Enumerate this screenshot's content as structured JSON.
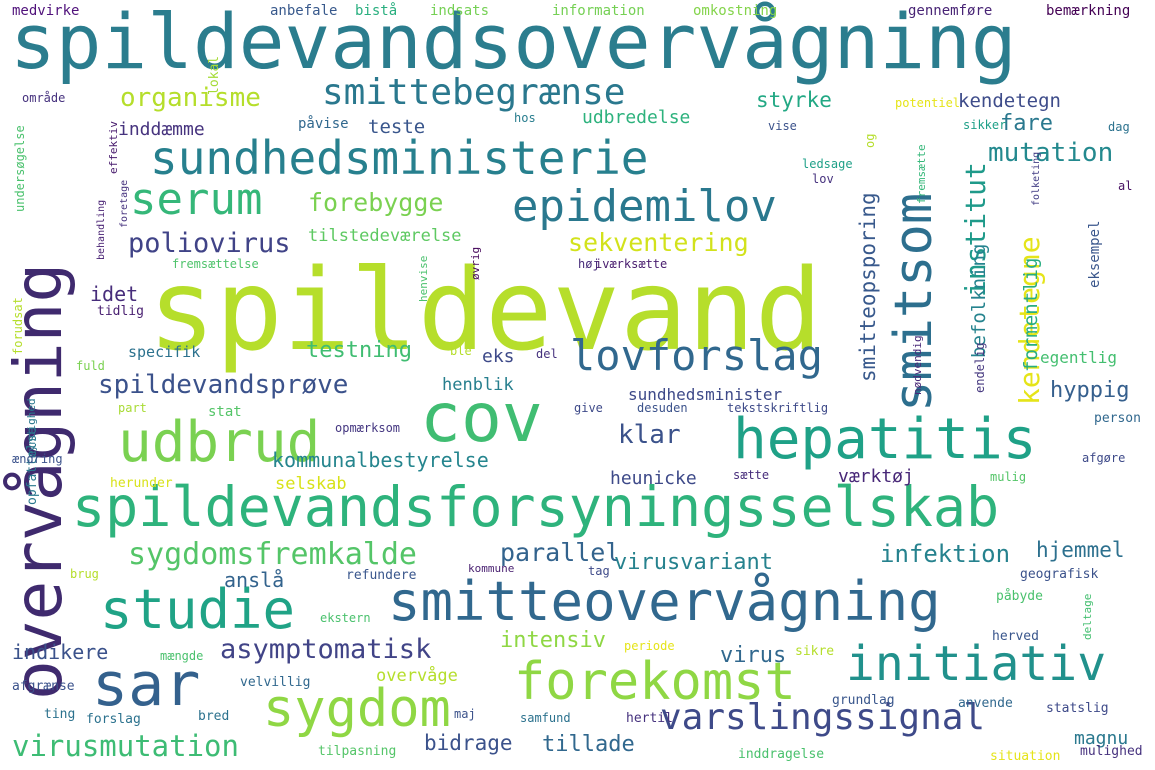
{
  "palette": {
    "background": "#ffffff"
  },
  "words": [
    {
      "text": "spildevandsovervågning",
      "color": "#2b7d8e"
    },
    {
      "text": "spildevand",
      "color": "#b6de2b"
    },
    {
      "text": "overvågning",
      "color": "#3f2a6e"
    },
    {
      "text": "smitsom",
      "color": "#2d6f8e"
    },
    {
      "text": "cov",
      "color": "#40bd72"
    },
    {
      "text": "udbrud",
      "color": "#7ad151"
    },
    {
      "text": "hepatitis",
      "color": "#1fa187"
    },
    {
      "text": "spildevandsforsyningsselskab",
      "color": "#2eb37c"
    },
    {
      "text": "smitteovervågning",
      "color": "#31688e"
    },
    {
      "text": "studie",
      "color": "#20a386"
    },
    {
      "text": "sar",
      "color": "#34618d"
    },
    {
      "text": "sygdom",
      "color": "#8fd744"
    },
    {
      "text": "forekomst",
      "color": "#8fd744"
    },
    {
      "text": "initiativ",
      "color": "#21918c"
    },
    {
      "text": "sundhedsministerie",
      "color": "#27808e"
    },
    {
      "text": "epidemilov",
      "color": "#2a788e"
    },
    {
      "text": "serum",
      "color": "#35b779"
    },
    {
      "text": "lovforslag",
      "color": "#31688e"
    },
    {
      "text": "smittebegrænse",
      "color": "#2a788e"
    },
    {
      "text": "organisme",
      "color": "#b5de2b"
    },
    {
      "text": "varslingssignal",
      "color": "#3e4a89"
    },
    {
      "text": "virusmutation",
      "color": "#3dbc74"
    },
    {
      "text": "sygdomsfremkalde",
      "color": "#54c568"
    },
    {
      "text": "spildevandsprøve",
      "color": "#3b528b"
    },
    {
      "text": "poliovirus",
      "color": "#404387"
    },
    {
      "text": "forebygge",
      "color": "#7ad151"
    },
    {
      "text": "sekventering",
      "color": "#d2e21b"
    },
    {
      "text": "asymptomatisk",
      "color": "#414487"
    },
    {
      "text": "kendetegne",
      "color": "#e5e419"
    },
    {
      "text": "institut",
      "color": "#1f9a8a"
    },
    {
      "text": "smitteopsporing",
      "color": "#38598c"
    },
    {
      "text": "mutation",
      "color": "#23898e"
    },
    {
      "text": "kommunalbestyrelse",
      "color": "#25858e"
    },
    {
      "text": "testning",
      "color": "#40bd72"
    },
    {
      "text": "klar",
      "color": "#3b528b"
    },
    {
      "text": "parallel",
      "color": "#33638d"
    },
    {
      "text": "infektion",
      "color": "#26828e"
    },
    {
      "text": "virusvariant",
      "color": "#26828e"
    },
    {
      "text": "fare",
      "color": "#2a788e"
    },
    {
      "text": "styrke",
      "color": "#22a884"
    },
    {
      "text": "hjemmel",
      "color": "#2d708e"
    },
    {
      "text": "intensiv",
      "color": "#8fd744"
    },
    {
      "text": "indikere",
      "color": "#3b528b"
    },
    {
      "text": "anslå",
      "color": "#33638d"
    },
    {
      "text": "virus",
      "color": "#31688e"
    },
    {
      "text": "bidrage",
      "color": "#3b528b"
    },
    {
      "text": "tillade",
      "color": "#31688e"
    },
    {
      "text": "magnu",
      "color": "#2a788e"
    },
    {
      "text": "befolkning",
      "color": "#25838e"
    },
    {
      "text": "formentlig",
      "color": "#27ad81"
    },
    {
      "text": "hyppig",
      "color": "#355f8d"
    },
    {
      "text": "kendetegn",
      "color": "#3e4c8a"
    },
    {
      "text": "teste",
      "color": "#39568c"
    },
    {
      "text": "inddæmme",
      "color": "#46337e"
    },
    {
      "text": "påvise",
      "color": "#31688e"
    },
    {
      "text": "udbredelse",
      "color": "#2db27d"
    },
    {
      "text": "idet",
      "color": "#472d7b"
    },
    {
      "text": "eks",
      "color": "#3e4a89"
    },
    {
      "text": "henblik",
      "color": "#277f8e"
    },
    {
      "text": "sundhedsminister",
      "color": "#3e4a89"
    },
    {
      "text": "heunicke",
      "color": "#3e4a89"
    },
    {
      "text": "værktøj",
      "color": "#482878"
    },
    {
      "text": "selskab",
      "color": "#d8e219"
    },
    {
      "text": "overvåge",
      "color": "#b5de2b"
    },
    {
      "text": "egentlig",
      "color": "#44bf70"
    },
    {
      "text": "eksempel",
      "color": "#39568c"
    },
    {
      "text": "tilstedeværelse",
      "color": "#5ec962"
    },
    {
      "text": "specifik",
      "color": "#2c728e"
    },
    {
      "text": "stat",
      "color": "#54c568"
    },
    {
      "text": "tidlig",
      "color": "#481f70"
    },
    {
      "text": "geografisk",
      "color": "#3b528b"
    },
    {
      "text": "refundere",
      "color": "#39568c"
    },
    {
      "text": "medvirke",
      "color": "#50127b"
    },
    {
      "text": "anbefale",
      "color": "#38598c"
    },
    {
      "text": "bistå",
      "color": "#29af7f"
    },
    {
      "text": "indsats",
      "color": "#75d054"
    },
    {
      "text": "information",
      "color": "#75d054"
    },
    {
      "text": "omkostning",
      "color": "#84d44b"
    },
    {
      "text": "gennemføre",
      "color": "#482475"
    },
    {
      "text": "bemærkning",
      "color": "#440154"
    },
    {
      "text": "lokal",
      "color": "#a5db36"
    },
    {
      "text": "område",
      "color": "#46327e"
    },
    {
      "text": "undersøgelse",
      "color": "#4ac16d"
    },
    {
      "text": "effektiv",
      "color": "#481b6d"
    },
    {
      "text": "foretage",
      "color": "#46327e"
    },
    {
      "text": "hos",
      "color": "#287d8e"
    },
    {
      "text": "potentiel",
      "color": "#e5e419"
    },
    {
      "text": "sikker",
      "color": "#1fa088"
    },
    {
      "text": "dag",
      "color": "#2c728e"
    },
    {
      "text": "vise",
      "color": "#3b528b"
    },
    {
      "text": "og",
      "color": "#b5de2b"
    },
    {
      "text": "ledsage",
      "color": "#1fa088"
    },
    {
      "text": "lov",
      "color": "#46327e"
    },
    {
      "text": "fremsætte",
      "color": "#35b779"
    },
    {
      "text": "folketing",
      "color": "#433e85"
    },
    {
      "text": "al",
      "color": "#471063"
    },
    {
      "text": "behandling",
      "color": "#482173"
    },
    {
      "text": "fremsættelse",
      "color": "#4ec36b"
    },
    {
      "text": "høj",
      "color": "#472c7a"
    },
    {
      "text": "iværksætte",
      "color": "#481c6e"
    },
    {
      "text": "henvise",
      "color": "#4ac16d"
    },
    {
      "text": "øvrig",
      "color": "#46085c"
    },
    {
      "text": "forudsat",
      "color": "#b5de2b"
    },
    {
      "text": "fuld",
      "color": "#7ad151"
    },
    {
      "text": "ble",
      "color": "#b5de2b"
    },
    {
      "text": "del",
      "color": "#46327e"
    },
    {
      "text": "nødvendig",
      "color": "#482878"
    },
    {
      "text": "endelig",
      "color": "#45377f"
    },
    {
      "text": "person",
      "color": "#31688e"
    },
    {
      "text": "part",
      "color": "#a8db34"
    },
    {
      "text": "give",
      "color": "#3e4a89"
    },
    {
      "text": "desuden",
      "color": "#3b528b"
    },
    {
      "text": "tekstskriftlig",
      "color": "#3e4a89"
    },
    {
      "text": "opmærksom",
      "color": "#453781"
    },
    {
      "text": "opfattelse",
      "color": "#2a788e"
    },
    {
      "text": "myndighed",
      "color": "#2a788e"
    },
    {
      "text": "ændring",
      "color": "#3b528b"
    },
    {
      "text": "afgøre",
      "color": "#3e4a89"
    },
    {
      "text": "herunder",
      "color": "#d8e219"
    },
    {
      "text": "sætte",
      "color": "#472d7b"
    },
    {
      "text": "mulig",
      "color": "#54c568"
    },
    {
      "text": "kommune",
      "color": "#481f70"
    },
    {
      "text": "påbyde",
      "color": "#4ac16d"
    },
    {
      "text": "tag",
      "color": "#3e4a89"
    },
    {
      "text": "brug",
      "color": "#b5de2b"
    },
    {
      "text": "ekstern",
      "color": "#4ac16d"
    },
    {
      "text": "herved",
      "color": "#39568c"
    },
    {
      "text": "deltage",
      "color": "#44bf70"
    },
    {
      "text": "mængde",
      "color": "#4ac16d"
    },
    {
      "text": "periode",
      "color": "#e5e419"
    },
    {
      "text": "sikre",
      "color": "#b5de2b"
    },
    {
      "text": "afgrænse",
      "color": "#3b528b"
    },
    {
      "text": "velvillig",
      "color": "#31688e"
    },
    {
      "text": "grundlag",
      "color": "#39568c"
    },
    {
      "text": "anvende",
      "color": "#31688e"
    },
    {
      "text": "statslig",
      "color": "#3e4a89"
    },
    {
      "text": "ting",
      "color": "#2c728e"
    },
    {
      "text": "forslag",
      "color": "#2c728e"
    },
    {
      "text": "bred",
      "color": "#2c728e"
    },
    {
      "text": "maj",
      "color": "#3b528b"
    },
    {
      "text": "samfund",
      "color": "#2c728e"
    },
    {
      "text": "hertil",
      "color": "#46327e"
    },
    {
      "text": "tilpasning",
      "color": "#54c568"
    },
    {
      "text": "inddragelse",
      "color": "#4ac16d"
    },
    {
      "text": "situation",
      "color": "#e5e419"
    },
    {
      "text": "mulighed",
      "color": "#46327e"
    }
  ]
}
